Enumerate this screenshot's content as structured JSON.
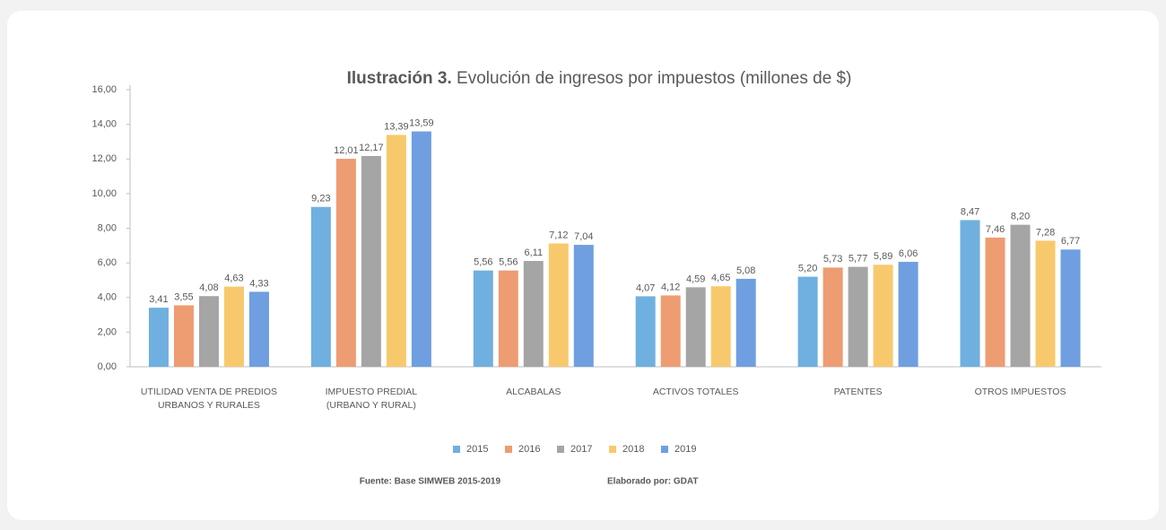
{
  "chart_data": {
    "type": "bar",
    "title_label": "Ilustración 3.",
    "title": "Evolución de ingresos por impuestos (millones de $)",
    "categories": [
      "UTILIDAD VENTA DE PREDIOS URBANOS Y RURALES",
      "IMPUESTO  PREDIAL (URBANO Y RURAL)",
      "ALCABALAS",
      "ACTIVOS TOTALES",
      "PATENTES",
      "OTROS IMPUESTOS"
    ],
    "series": [
      {
        "name": "2015",
        "color": "#6fb0e0",
        "values": [
          3.41,
          9.23,
          5.56,
          4.07,
          5.2,
          8.47
        ],
        "value_labels": [
          "3,41",
          "9,23",
          "5,56",
          "4,07",
          "5,20",
          "8,47"
        ]
      },
      {
        "name": "2016",
        "color": "#ee9c72",
        "values": [
          3.55,
          12.01,
          5.56,
          4.12,
          5.73,
          7.46
        ],
        "value_labels": [
          "3,55",
          "12,01",
          "5,56",
          "4,12",
          "5,73",
          "7,46"
        ]
      },
      {
        "name": "2017",
        "color": "#a5a5a5",
        "values": [
          4.08,
          12.17,
          6.11,
          4.59,
          5.77,
          8.2
        ],
        "value_labels": [
          "4,08",
          "12,17",
          "6,11",
          "4,59",
          "5,77",
          "8,20"
        ]
      },
      {
        "name": "2018",
        "color": "#f8c96c",
        "values": [
          4.63,
          13.39,
          7.12,
          4.65,
          5.89,
          7.28
        ],
        "value_labels": [
          "4,63",
          "13,39",
          "7,12",
          "4,65",
          "5,89",
          "7,28"
        ]
      },
      {
        "name": "2019",
        "color": "#6f9fe0",
        "values": [
          4.33,
          13.59,
          7.04,
          5.08,
          6.06,
          6.77
        ],
        "value_labels": [
          "4,33",
          "13,59",
          "7,04",
          "5,08",
          "6,06",
          "6,77"
        ]
      }
    ],
    "ylim": [
      0,
      16
    ],
    "yticks": [
      {
        "value": 0,
        "label": "0,00"
      },
      {
        "value": 2,
        "label": "2,00"
      },
      {
        "value": 4,
        "label": "4,00"
      },
      {
        "value": 6,
        "label": "6,00"
      },
      {
        "value": 8,
        "label": "8,00"
      },
      {
        "value": 10,
        "label": "10,00"
      },
      {
        "value": 12,
        "label": "12,00"
      },
      {
        "value": 14,
        "label": "14,00"
      },
      {
        "value": 16,
        "label": "16,00"
      }
    ],
    "grid": false,
    "legend": "bottom",
    "source": "Fuente: Base SIMWEB 2015-2019",
    "author": "Elaborado por: GDAT"
  }
}
